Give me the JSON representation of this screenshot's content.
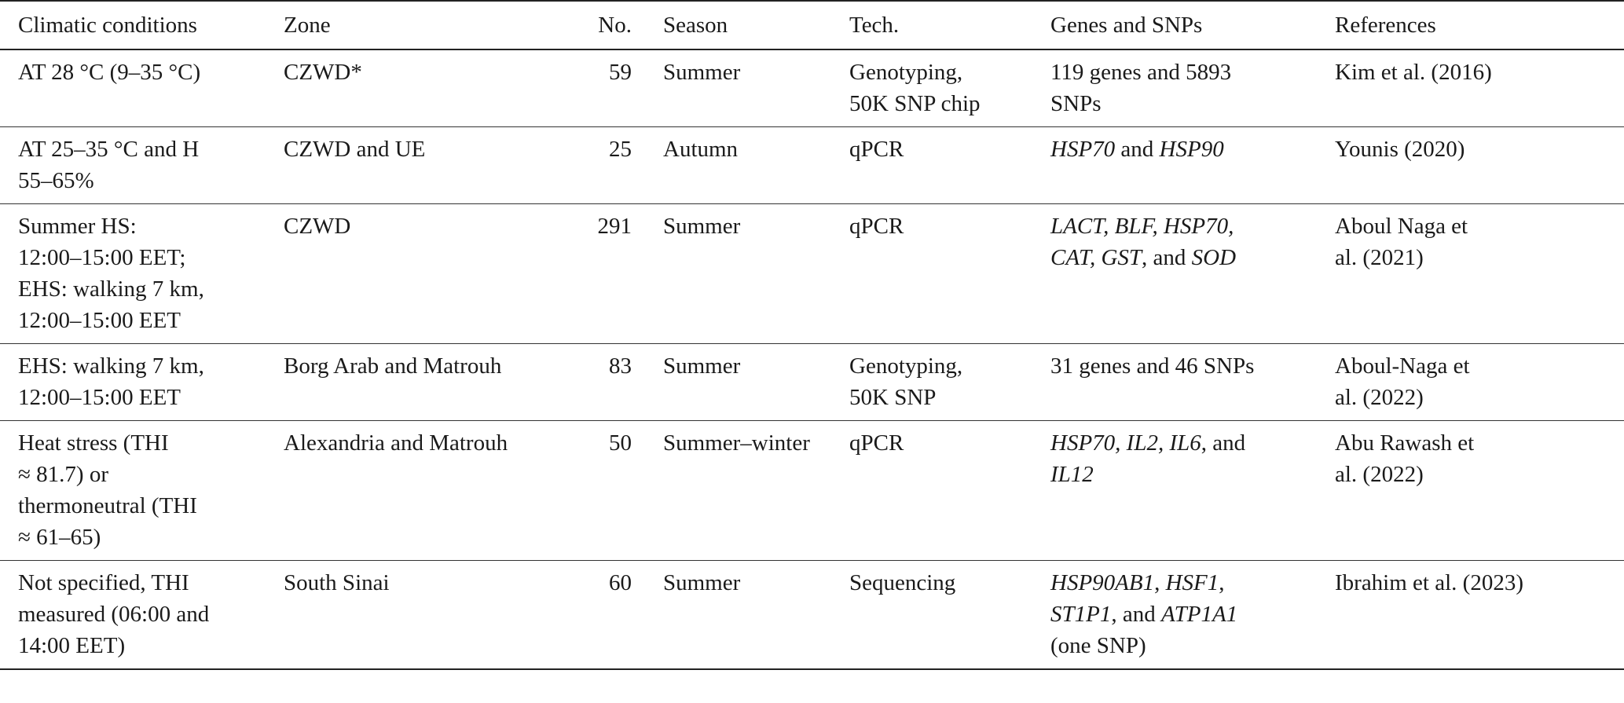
{
  "table": {
    "headers": {
      "climate": "Climatic conditions",
      "zone": "Zone",
      "no": "No.",
      "season": "Season",
      "tech": "Tech.",
      "genes": "Genes and SNPs",
      "refs": "References"
    },
    "rows": [
      {
        "climate": [
          "AT 28 °C (9–35 °C)"
        ],
        "zone": "CZWD*",
        "no": "59",
        "season": "Summer",
        "tech": [
          "Genotyping,",
          "50K SNP chip"
        ],
        "genes": [
          "119 genes and 5893",
          "SNPs"
        ],
        "refs": [
          "Kim et al. (2016)"
        ]
      },
      {
        "climate": [
          "AT 25–35 °C and H",
          "55–65%"
        ],
        "zone": "CZWD and UE",
        "no": "25",
        "season": "Autumn",
        "tech": [
          "qPCR"
        ],
        "genes": {
          "g1": "HSP70",
          "t1": " and ",
          "g2": "HSP90"
        },
        "refs": [
          "Younis (2020)"
        ]
      },
      {
        "climate": [
          "Summer HS:",
          "12:00–15:00 EET;",
          "EHS: walking 7 km,",
          "12:00–15:00 EET"
        ],
        "zone": "CZWD",
        "no": "291",
        "season": "Summer",
        "tech": [
          "qPCR"
        ],
        "genes": {
          "l1": "LACT, BLF, HSP70,",
          "l2a": "CAT, GST",
          "l2b": ", and ",
          "l2c": "SOD"
        },
        "refs": [
          "Aboul Naga et",
          "al. (2021)"
        ]
      },
      {
        "climate": [
          "EHS: walking 7 km,",
          "12:00–15:00 EET"
        ],
        "zone": "Borg Arab and Matrouh",
        "no": "83",
        "season": "Summer",
        "tech": [
          "Genotyping,",
          "50K SNP"
        ],
        "genes": [
          "31 genes and 46 SNPs"
        ],
        "refs": [
          "Aboul-Naga et",
          "al. (2022)"
        ]
      },
      {
        "climate": [
          "Heat stress (THI",
          "≈ 81.7) or",
          "thermoneutral (THI",
          "≈ 61–65)"
        ],
        "zone": "Alexandria and Matrouh",
        "no": "50",
        "season": "Summer–winter",
        "tech": [
          "qPCR"
        ],
        "genes": {
          "l1a": "HSP70, IL2, IL6",
          "l1b": ", and",
          "l2": "IL12"
        },
        "refs": [
          "Abu Rawash et",
          "al. (2022)"
        ]
      },
      {
        "climate": [
          "Not specified, THI",
          "measured (06:00 and",
          "14:00 EET)"
        ],
        "zone": "South Sinai",
        "no": "60",
        "season": "Summer",
        "tech": [
          "Sequencing"
        ],
        "genes": {
          "l1a": "HSP90AB1",
          "l1b": ", ",
          "l1c": "HSF1",
          "l1d": ",",
          "l2a": "ST1P1",
          "l2b": ", and ",
          "l2c": "ATP1A1",
          "l3": "(one SNP)"
        },
        "refs": [
          "Ibrahim et al. (2023)"
        ]
      }
    ]
  }
}
